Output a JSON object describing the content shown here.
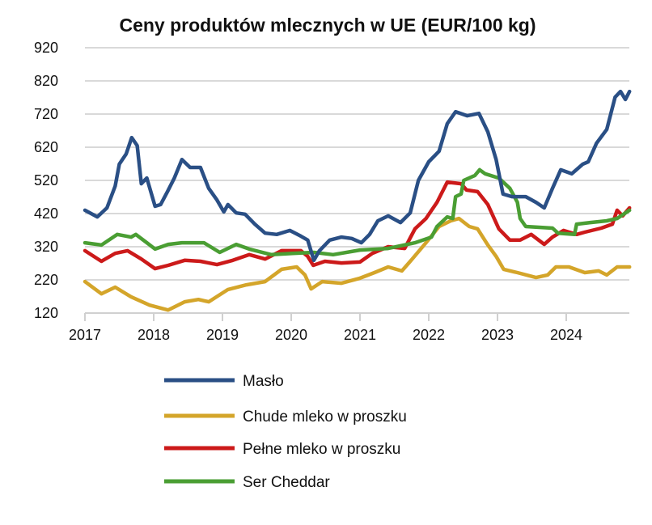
{
  "chart_data": {
    "type": "line",
    "title": "Ceny produktów mlecznych w UE (EUR/100 kg)",
    "xlabel": "",
    "ylabel": "",
    "xlim": [
      2017,
      2024.92
    ],
    "ylim": [
      120,
      920
    ],
    "yticks": [
      120,
      220,
      320,
      420,
      520,
      620,
      720,
      820,
      920
    ],
    "xticks": [
      2017,
      2018,
      2019,
      2020,
      2021,
      2022,
      2023,
      2024
    ],
    "grid": "horizontal",
    "legend_position": "bottom",
    "series": [
      {
        "name": "Masło",
        "color": "#2a4f85",
        "x": [
          2017,
          2017.18,
          2017.32,
          2017.44,
          2017.5,
          2017.6,
          2017.68,
          2017.76,
          2017.82,
          2017.9,
          2018.02,
          2018.1,
          2018.2,
          2018.3,
          2018.41,
          2018.53,
          2018.68,
          2018.8,
          2018.92,
          2019.02,
          2019.08,
          2019.2,
          2019.33,
          2019.47,
          2019.62,
          2019.79,
          2019.98,
          2020.14,
          2020.24,
          2020.33,
          2020.41,
          2020.56,
          2020.73,
          2020.88,
          2021.02,
          2021.14,
          2021.26,
          2021.41,
          2021.59,
          2021.73,
          2021.85,
          2022.0,
          2022.15,
          2022.27,
          2022.39,
          2022.56,
          2022.73,
          2022.86,
          2022.98,
          2023.08,
          2023.21,
          2023.41,
          2023.56,
          2023.68,
          2023.8,
          2023.92,
          2024.08,
          2024.24,
          2024.32,
          2024.44,
          2024.59,
          2024.71,
          2024.79,
          2024.86,
          2024.92
        ],
        "y": [
          430,
          410,
          437,
          503,
          569,
          600,
          649,
          625,
          510,
          527,
          442,
          447,
          486,
          527,
          583,
          559,
          559,
          496,
          461,
          425,
          447,
          422,
          418,
          388,
          361,
          357,
          369,
          352,
          340,
          279,
          308,
          340,
          349,
          345,
          332,
          357,
          398,
          413,
          393,
          422,
          520,
          576,
          608,
          691,
          727,
          715,
          722,
          666,
          583,
          479,
          471,
          471,
          454,
          437,
          496,
          552,
          540,
          569,
          576,
          632,
          674,
          771,
          788,
          764,
          788
        ]
      },
      {
        "name": "Chude mleko w proszku",
        "color": "#d4a52a",
        "x": [
          2017,
          2017.24,
          2017.44,
          2017.67,
          2017.94,
          2018.21,
          2018.45,
          2018.65,
          2018.8,
          2019.08,
          2019.35,
          2019.62,
          2019.86,
          2020.08,
          2020.2,
          2020.29,
          2020.45,
          2020.73,
          2021.0,
          2021.21,
          2021.41,
          2021.61,
          2021.76,
          2021.96,
          2022.15,
          2022.32,
          2022.44,
          2022.59,
          2022.71,
          2022.86,
          2022.98,
          2023.09,
          2023.29,
          2023.56,
          2023.73,
          2023.85,
          2024.04,
          2024.27,
          2024.47,
          2024.59,
          2024.74,
          2024.92
        ],
        "y": [
          215,
          178,
          198,
          169,
          144,
          129,
          154,
          161,
          154,
          191,
          205,
          215,
          252,
          259,
          235,
          193,
          215,
          210,
          225,
          242,
          259,
          247,
          283,
          332,
          381,
          398,
          405,
          381,
          374,
          325,
          291,
          252,
          242,
          227,
          235,
          259,
          259,
          242,
          247,
          235,
          259,
          259
        ]
      },
      {
        "name": "Pełne mleko w proszku",
        "color": "#cc1a1a",
        "x": [
          2017,
          2017.24,
          2017.44,
          2017.62,
          2017.82,
          2018.02,
          2018.21,
          2018.45,
          2018.68,
          2018.92,
          2019.15,
          2019.39,
          2019.62,
          2019.86,
          2020.14,
          2020.24,
          2020.32,
          2020.49,
          2020.73,
          2021.0,
          2021.18,
          2021.41,
          2021.65,
          2021.8,
          2021.96,
          2022.12,
          2022.27,
          2022.47,
          2022.55,
          2022.71,
          2022.86,
          2023.02,
          2023.18,
          2023.33,
          2023.49,
          2023.68,
          2023.8,
          2023.96,
          2024.15,
          2024.27,
          2024.51,
          2024.67,
          2024.74,
          2024.82,
          2024.92
        ],
        "y": [
          308,
          276,
          300,
          308,
          283,
          254,
          264,
          279,
          276,
          266,
          279,
          296,
          283,
          308,
          308,
          291,
          264,
          276,
          271,
          274,
          300,
          320,
          315,
          374,
          405,
          454,
          515,
          510,
          491,
          486,
          447,
          374,
          340,
          340,
          357,
          327,
          349,
          369,
          357,
          364,
          376,
          388,
          430,
          413,
          437
        ]
      },
      {
        "name": "Ser Cheddar",
        "color": "#4a9e33",
        "x": [
          2017,
          2017.24,
          2017.47,
          2017.67,
          2017.74,
          2017.9,
          2018.02,
          2018.21,
          2018.41,
          2018.73,
          2018.96,
          2019.2,
          2019.39,
          2019.71,
          2020.02,
          2020.33,
          2020.61,
          2021.0,
          2021.41,
          2021.8,
          2022.04,
          2022.12,
          2022.27,
          2022.35,
          2022.39,
          2022.47,
          2022.51,
          2022.67,
          2022.74,
          2022.82,
          2023.02,
          2023.18,
          2023.29,
          2023.33,
          2023.41,
          2023.8,
          2023.88,
          2024.12,
          2024.15,
          2024.35,
          2024.59,
          2024.74,
          2024.92
        ],
        "y": [
          332,
          325,
          357,
          349,
          357,
          332,
          313,
          327,
          332,
          332,
          303,
          327,
          313,
          296,
          300,
          303,
          296,
          310,
          315,
          332,
          349,
          381,
          410,
          405,
          471,
          479,
          520,
          535,
          552,
          540,
          527,
          496,
          454,
          405,
          381,
          376,
          361,
          357,
          388,
          393,
          398,
          405,
          430
        ]
      }
    ]
  }
}
